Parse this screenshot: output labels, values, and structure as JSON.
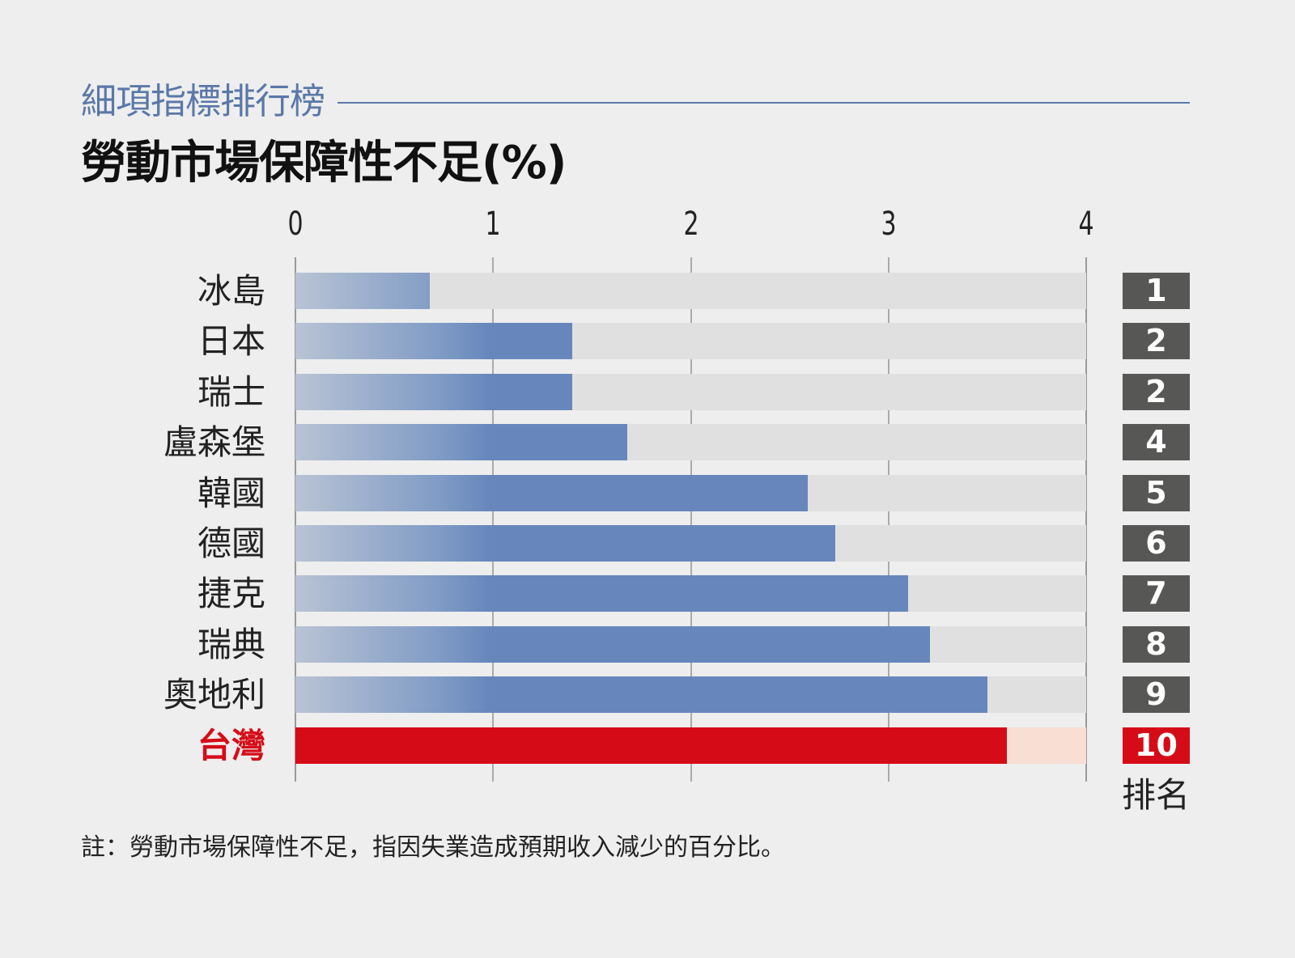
{
  "header": {
    "subtitle": "細項指標排行榜",
    "title": "勞動市場保障性不足(%)"
  },
  "colors": {
    "background": "#eeeeee",
    "subtitle": "#5a78a8",
    "bar": "#6787bc",
    "bar_gradient_start": "#b9c3d4",
    "track": "#e0e0e0",
    "highlight": "#d50c18",
    "highlight_track": "#f8ded3",
    "rank_badge": "#575756"
  },
  "axis": {
    "ticks": [
      "0",
      "1",
      "2",
      "3",
      "4"
    ]
  },
  "rank_header": "排名",
  "note": "註：勞動市場保障性不足，指因失業造成預期收入減少的百分比。",
  "chart_data": {
    "type": "bar",
    "orientation": "horizontal",
    "title": "勞動市場保障性不足(%)",
    "subtitle": "細項指標排行榜",
    "xlabel": "",
    "ylabel": "",
    "xlim": [
      0,
      4
    ],
    "x_ticks": [
      0,
      1,
      2,
      3,
      4
    ],
    "grid": true,
    "categories": [
      "冰島",
      "日本",
      "瑞士",
      "盧森堡",
      "韓國",
      "德國",
      "捷克",
      "瑞典",
      "奧地利",
      "台灣"
    ],
    "values": [
      0.68,
      1.4,
      1.4,
      1.68,
      2.59,
      2.73,
      3.1,
      3.21,
      3.5,
      3.6
    ],
    "ranks": [
      "1",
      "2",
      "2",
      "4",
      "5",
      "6",
      "7",
      "8",
      "9",
      "10"
    ],
    "highlight": "台灣",
    "rank_label": "排名",
    "note": "註：勞動市場保障性不足，指因失業造成預期收入減少的百分比。"
  }
}
